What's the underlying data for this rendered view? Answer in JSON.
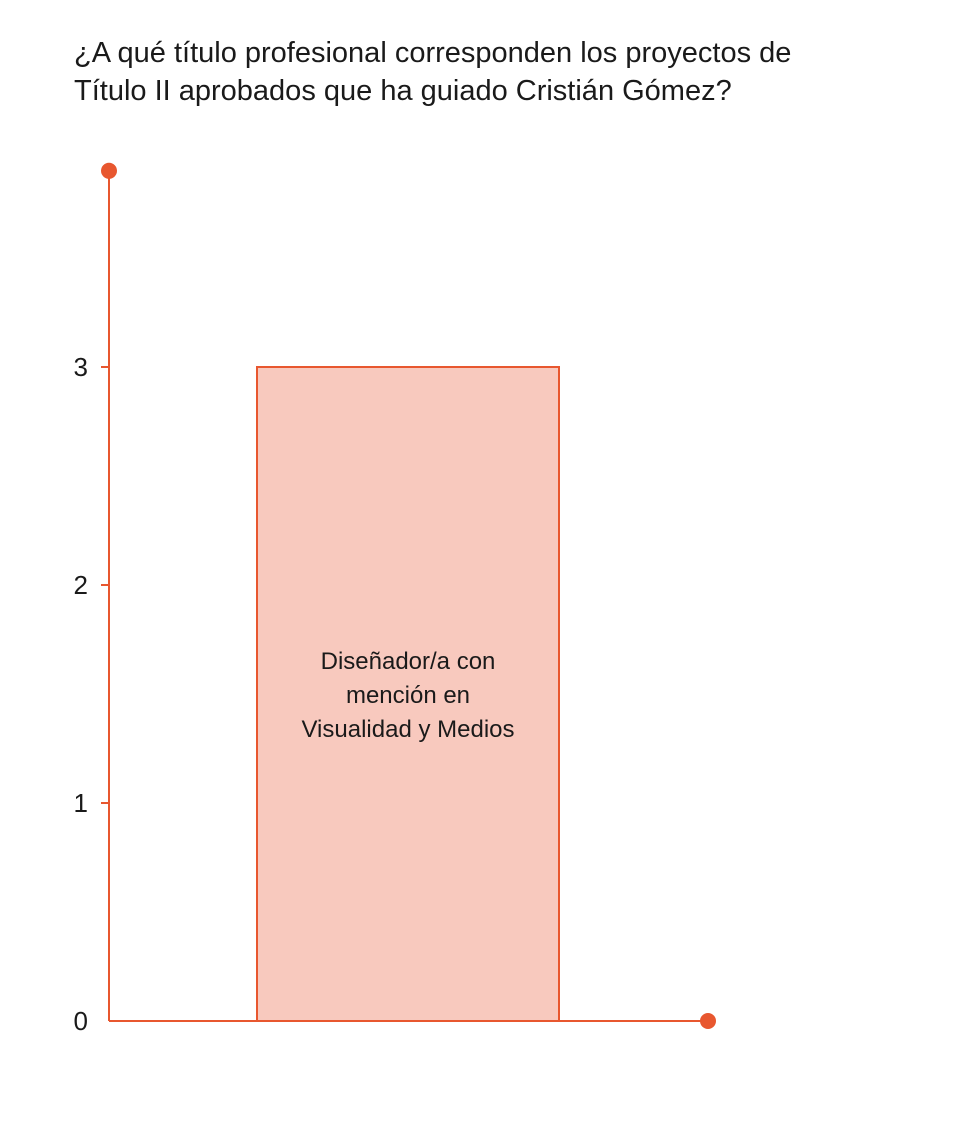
{
  "chart_data": {
    "type": "bar",
    "title_lines": [
      "¿A qué título profesional corresponden los proyectos de",
      "Título II aprobados que ha guiado Cristián Gómez?"
    ],
    "categories": [
      "Diseñador/a con mención en Visualidad y Medios"
    ],
    "category_label_lines": [
      [
        "Diseñador/a con",
        "mención en",
        "Visualidad y Medios"
      ]
    ],
    "values": [
      3
    ],
    "yticks": [
      0,
      1,
      2,
      3
    ],
    "ylim": [
      0,
      3.9
    ],
    "xlabel": "",
    "ylabel": "",
    "grid": false,
    "colors": {
      "axis": "#e8572f",
      "bar_fill": "#f8c9be",
      "bar_stroke": "#e8572f",
      "text": "#1a1a1a"
    }
  }
}
